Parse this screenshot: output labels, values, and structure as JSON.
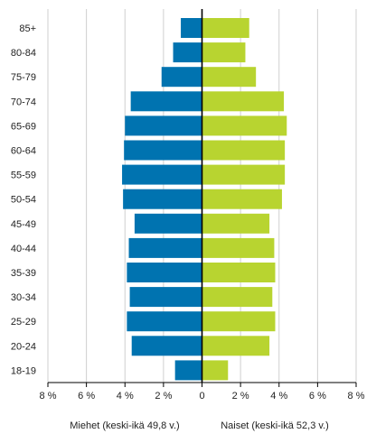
{
  "chart_data": {
    "type": "bar",
    "orientation": "horizontal",
    "categories": [
      "85+",
      "80-84",
      "75-79",
      "70-74",
      "65-69",
      "60-64",
      "55-59",
      "50-54",
      "45-49",
      "40-44",
      "35-39",
      "30-34",
      "25-29",
      "20-24",
      "18-19"
    ],
    "series": [
      {
        "name": "Miehet (keski-ikä 49,8 v.)",
        "color": "#0073b0",
        "side": "left",
        "values": [
          1.1,
          1.5,
          2.1,
          3.7,
          4.0,
          4.05,
          4.15,
          4.1,
          3.5,
          3.8,
          3.9,
          3.75,
          3.9,
          3.65,
          1.4
        ]
      },
      {
        "name": "Naiset (keski-ikä 52,3 v.)",
        "color": "#b8d430",
        "side": "right",
        "values": [
          2.45,
          2.25,
          2.8,
          4.25,
          4.4,
          4.3,
          4.3,
          4.15,
          3.5,
          3.75,
          3.8,
          3.65,
          3.8,
          3.5,
          1.35
        ]
      }
    ],
    "x_ticks": [
      -8,
      -6,
      -4,
      -2,
      0,
      2,
      4,
      6,
      8
    ],
    "x_tick_labels": [
      "8 %",
      "6 %",
      "4 %",
      "2 %",
      "0",
      "2 %",
      "4 %",
      "6 %",
      "8 %"
    ],
    "xlim": [
      -8,
      8
    ],
    "grid": "vertical",
    "legend_placement": "bottom"
  }
}
